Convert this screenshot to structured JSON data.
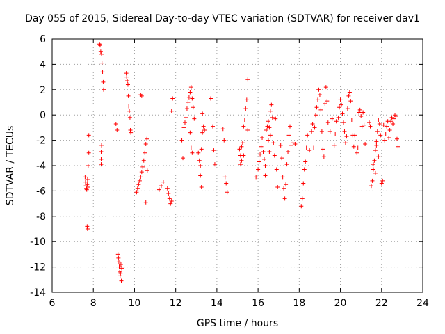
{
  "chart_data": {
    "type": "scatter",
    "title": "Day 055 of 2015, Sidereal Day-to-day VTEC variation (SDTVAR) for receiver dav1",
    "xlabel": "GPS time / hours",
    "ylabel": "SDTVAR / TECUs",
    "xlim": [
      6,
      24
    ],
    "ylim": [
      -14,
      6
    ],
    "xticks": [
      6,
      8,
      10,
      12,
      14,
      16,
      18,
      20,
      22,
      24
    ],
    "yticks": [
      -14,
      -12,
      -10,
      -8,
      -6,
      -4,
      -2,
      0,
      2,
      4,
      6
    ],
    "grid": true,
    "marker": "+",
    "color": "#ff0000",
    "series": [
      {
        "name": "SDTVAR",
        "points": [
          [
            7.6,
            -4.9
          ],
          [
            7.62,
            -5.3
          ],
          [
            7.64,
            -5.6
          ],
          [
            7.66,
            -5.8
          ],
          [
            7.68,
            -5.9
          ],
          [
            7.7,
            -5.5
          ],
          [
            7.72,
            -5.1
          ],
          [
            7.74,
            -5.7
          ],
          [
            7.7,
            -8.8
          ],
          [
            7.72,
            -9.0
          ],
          [
            7.75,
            -4.0
          ],
          [
            7.78,
            -3.0
          ],
          [
            7.78,
            -1.6
          ],
          [
            8.3,
            5.6
          ],
          [
            8.33,
            5.5
          ],
          [
            8.36,
            5.0
          ],
          [
            8.4,
            4.8
          ],
          [
            8.42,
            4.1
          ],
          [
            8.45,
            3.4
          ],
          [
            8.48,
            2.6
          ],
          [
            8.5,
            2.0
          ],
          [
            8.38,
            -2.9
          ],
          [
            8.38,
            -3.5
          ],
          [
            8.38,
            -3.9
          ],
          [
            8.4,
            -2.4
          ],
          [
            9.1,
            -0.7
          ],
          [
            9.15,
            -1.2
          ],
          [
            9.2,
            -11.0
          ],
          [
            9.22,
            -11.3
          ],
          [
            9.24,
            -11.6
          ],
          [
            9.26,
            -12.0
          ],
          [
            9.28,
            -12.4
          ],
          [
            9.3,
            -12.7
          ],
          [
            9.32,
            -12.5
          ],
          [
            9.34,
            -11.8
          ],
          [
            9.36,
            -13.1
          ],
          [
            9.38,
            -12.1
          ],
          [
            9.6,
            3.3
          ],
          [
            9.62,
            3.0
          ],
          [
            9.65,
            2.7
          ],
          [
            9.68,
            2.4
          ],
          [
            9.7,
            1.5
          ],
          [
            9.72,
            0.7
          ],
          [
            9.75,
            0.3
          ],
          [
            9.78,
            -0.2
          ],
          [
            9.8,
            -1.2
          ],
          [
            9.82,
            -1.4
          ],
          [
            10.1,
            -6.1
          ],
          [
            10.15,
            -5.8
          ],
          [
            10.2,
            -5.5
          ],
          [
            10.25,
            -5.2
          ],
          [
            10.3,
            -4.9
          ],
          [
            10.35,
            -4.5
          ],
          [
            10.4,
            -4.1
          ],
          [
            10.45,
            -3.6
          ],
          [
            10.5,
            -3.0
          ],
          [
            10.55,
            -2.3
          ],
          [
            10.6,
            -1.9
          ],
          [
            10.62,
            -4.4
          ],
          [
            10.55,
            -6.9
          ],
          [
            10.3,
            1.6
          ],
          [
            10.35,
            1.5
          ],
          [
            11.2,
            -5.9
          ],
          [
            11.3,
            -5.6
          ],
          [
            11.4,
            -5.3
          ],
          [
            11.6,
            -5.8
          ],
          [
            11.65,
            -6.2
          ],
          [
            11.7,
            -6.6
          ],
          [
            11.75,
            -7.0
          ],
          [
            11.8,
            -6.8
          ],
          [
            11.8,
            0.3
          ],
          [
            11.85,
            1.3
          ],
          [
            12.3,
            -2.0
          ],
          [
            12.35,
            -3.4
          ],
          [
            12.4,
            -1.0
          ],
          [
            12.45,
            -0.6
          ],
          [
            12.5,
            -0.2
          ],
          [
            12.55,
            0.5
          ],
          [
            12.6,
            1.0
          ],
          [
            12.65,
            1.4
          ],
          [
            12.7,
            1.8
          ],
          [
            12.75,
            2.2
          ],
          [
            12.8,
            1.3
          ],
          [
            12.85,
            0.6
          ],
          [
            12.9,
            -0.3
          ],
          [
            12.7,
            -1.4
          ],
          [
            12.75,
            -2.6
          ],
          [
            12.8,
            -3.0
          ],
          [
            13.1,
            -3.0
          ],
          [
            13.15,
            -3.6
          ],
          [
            13.2,
            -4.0
          ],
          [
            13.25,
            -2.7
          ],
          [
            13.3,
            -1.4
          ],
          [
            13.35,
            -0.9
          ],
          [
            13.2,
            -4.8
          ],
          [
            13.25,
            -5.7
          ],
          [
            13.3,
            0.1
          ],
          [
            13.4,
            -1.2
          ],
          [
            13.7,
            1.3
          ],
          [
            13.8,
            -0.9
          ],
          [
            13.85,
            -2.8
          ],
          [
            13.9,
            -3.9
          ],
          [
            14.3,
            -1.1
          ],
          [
            14.35,
            -2.0
          ],
          [
            14.4,
            -4.9
          ],
          [
            14.45,
            -5.4
          ],
          [
            14.5,
            -6.1
          ],
          [
            15.1,
            -2.7
          ],
          [
            15.15,
            -3.2
          ],
          [
            15.2,
            -2.5
          ],
          [
            15.25,
            -2.2
          ],
          [
            15.3,
            -0.9
          ],
          [
            15.35,
            -0.4
          ],
          [
            15.4,
            0.5
          ],
          [
            15.45,
            1.2
          ],
          [
            15.5,
            2.8
          ],
          [
            15.15,
            -3.9
          ],
          [
            15.2,
            -3.6
          ],
          [
            15.3,
            -3.2
          ],
          [
            15.5,
            -1.2
          ],
          [
            15.9,
            -4.9
          ],
          [
            16.0,
            -4.3
          ],
          [
            16.05,
            -3.7
          ],
          [
            16.1,
            -3.1
          ],
          [
            16.15,
            -2.5
          ],
          [
            16.2,
            -1.8
          ],
          [
            16.25,
            -2.9
          ],
          [
            16.3,
            -3.5
          ],
          [
            16.35,
            -4.0
          ],
          [
            16.4,
            -1.2
          ],
          [
            16.45,
            -0.9
          ],
          [
            16.5,
            -0.5
          ],
          [
            16.55,
            -1.0
          ],
          [
            16.6,
            0.3
          ],
          [
            16.65,
            0.8
          ],
          [
            16.7,
            -0.2
          ],
          [
            16.75,
            -2.2
          ],
          [
            16.8,
            -3.2
          ],
          [
            16.85,
            -0.3
          ],
          [
            16.9,
            -4.3
          ],
          [
            16.95,
            -5.7
          ],
          [
            16.5,
            -2.0
          ],
          [
            16.55,
            -2.9
          ],
          [
            16.6,
            -1.6
          ],
          [
            16.35,
            -4.8
          ],
          [
            17.1,
            -2.4
          ],
          [
            17.15,
            -3.4
          ],
          [
            17.2,
            -4.9
          ],
          [
            17.25,
            -5.8
          ],
          [
            17.3,
            -6.6
          ],
          [
            17.35,
            -5.5
          ],
          [
            17.4,
            -3.9
          ],
          [
            17.45,
            -2.9
          ],
          [
            17.5,
            -1.6
          ],
          [
            17.55,
            -0.9
          ],
          [
            17.6,
            -2.4
          ],
          [
            17.7,
            -2.2
          ],
          [
            17.8,
            -2.3
          ],
          [
            18.1,
            -7.2
          ],
          [
            18.15,
            -6.6
          ],
          [
            18.2,
            -5.4
          ],
          [
            18.25,
            -4.3
          ],
          [
            18.3,
            -3.7
          ],
          [
            18.35,
            -2.6
          ],
          [
            18.4,
            -1.6
          ],
          [
            18.5,
            -2.8
          ],
          [
            18.6,
            -1.3
          ],
          [
            18.65,
            -0.7
          ],
          [
            18.7,
            -2.6
          ],
          [
            18.75,
            -1.0
          ],
          [
            18.8,
            0.0
          ],
          [
            18.85,
            0.6
          ],
          [
            18.9,
            1.2
          ],
          [
            18.95,
            2.0
          ],
          [
            19.0,
            1.6
          ],
          [
            19.05,
            0.4
          ],
          [
            19.1,
            -1.3
          ],
          [
            19.15,
            -2.7
          ],
          [
            19.2,
            -3.3
          ],
          [
            19.25,
            0.9
          ],
          [
            19.3,
            2.2
          ],
          [
            19.35,
            1.1
          ],
          [
            19.4,
            -0.6
          ],
          [
            19.5,
            -1.3
          ],
          [
            19.6,
            -0.3
          ],
          [
            19.7,
            -2.4
          ],
          [
            19.75,
            -1.5
          ],
          [
            19.8,
            -0.5
          ],
          [
            19.9,
            -0.2
          ],
          [
            19.95,
            0.6
          ],
          [
            20.0,
            1.2
          ],
          [
            20.05,
            0.8
          ],
          [
            20.1,
            0.1
          ],
          [
            20.15,
            -0.6
          ],
          [
            20.2,
            -1.3
          ],
          [
            20.25,
            -2.2
          ],
          [
            20.3,
            -1.7
          ],
          [
            20.35,
            0.5
          ],
          [
            20.4,
            1.5
          ],
          [
            20.45,
            1.8
          ],
          [
            20.5,
            1.1
          ],
          [
            20.55,
            -0.4
          ],
          [
            20.6,
            -1.6
          ],
          [
            20.65,
            -2.5
          ],
          [
            20.7,
            -1.6
          ],
          [
            20.8,
            -3.0
          ],
          [
            20.85,
            -2.6
          ],
          [
            20.9,
            0.2
          ],
          [
            20.95,
            0.4
          ],
          [
            21.0,
            -0.1
          ],
          [
            21.05,
            -0.9
          ],
          [
            21.1,
            0.2
          ],
          [
            21.15,
            -0.8
          ],
          [
            21.2,
            -2.3
          ],
          [
            21.4,
            -0.6
          ],
          [
            21.45,
            -0.9
          ],
          [
            21.5,
            -5.6
          ],
          [
            21.55,
            -5.2
          ],
          [
            21.6,
            -4.3
          ],
          [
            21.65,
            -3.6
          ],
          [
            21.7,
            -2.8
          ],
          [
            21.75,
            -2.1
          ],
          [
            21.8,
            -1.3
          ],
          [
            21.85,
            -0.4
          ],
          [
            21.9,
            -0.7
          ],
          [
            21.95,
            -1.6
          ],
          [
            22.0,
            -5.4
          ],
          [
            22.05,
            -5.2
          ],
          [
            22.1,
            -0.8
          ],
          [
            22.15,
            -2.0
          ],
          [
            22.2,
            -1.5
          ],
          [
            22.25,
            -0.9
          ],
          [
            22.3,
            -0.5
          ],
          [
            22.35,
            -1.8
          ],
          [
            22.4,
            -1.2
          ],
          [
            22.45,
            -0.5
          ],
          [
            22.5,
            -0.2
          ],
          [
            22.55,
            -0.7
          ],
          [
            22.6,
            -0.3
          ],
          [
            22.65,
            0.0
          ],
          [
            22.7,
            -0.1
          ],
          [
            22.75,
            -1.9
          ],
          [
            22.8,
            -2.5
          ],
          [
            21.6,
            -3.9
          ],
          [
            21.7,
            -4.6
          ],
          [
            21.75,
            -2.4
          ],
          [
            21.85,
            -3.3
          ]
        ]
      }
    ]
  }
}
